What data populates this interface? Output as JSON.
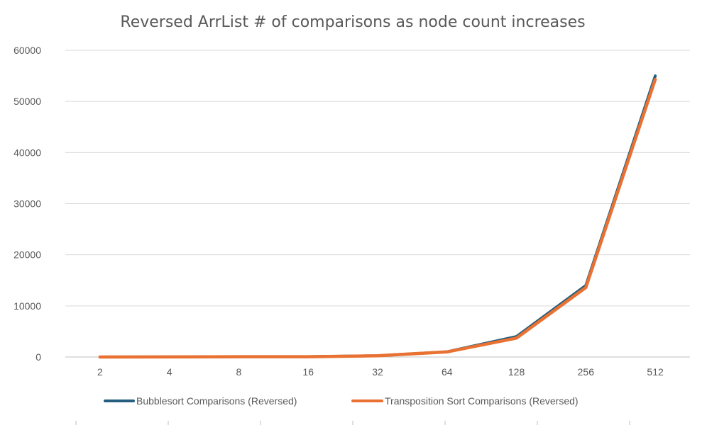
{
  "chart_data": {
    "type": "line",
    "title": "Reversed ArrList # of comparisons as node count increases",
    "categories": [
      "2",
      "4",
      "8",
      "16",
      "32",
      "64",
      "128",
      "256",
      "512"
    ],
    "series": [
      {
        "name": "Bubblesort Comparisons (Reversed)",
        "color": "#255E7E",
        "values": [
          1,
          16,
          64,
          64,
          256,
          1024,
          4000,
          14000,
          55000
        ]
      },
      {
        "name": "Transposition Sort Comparisons (Reversed)",
        "color": "#E97132",
        "values": [
          1,
          12,
          56,
          56,
          240,
          992,
          3700,
          13600,
          54300
        ]
      }
    ],
    "ylim": [
      0,
      60000
    ],
    "yticks": [
      0,
      10000,
      20000,
      30000,
      40000,
      50000,
      60000
    ],
    "grid": true,
    "legend_position": "bottom"
  }
}
